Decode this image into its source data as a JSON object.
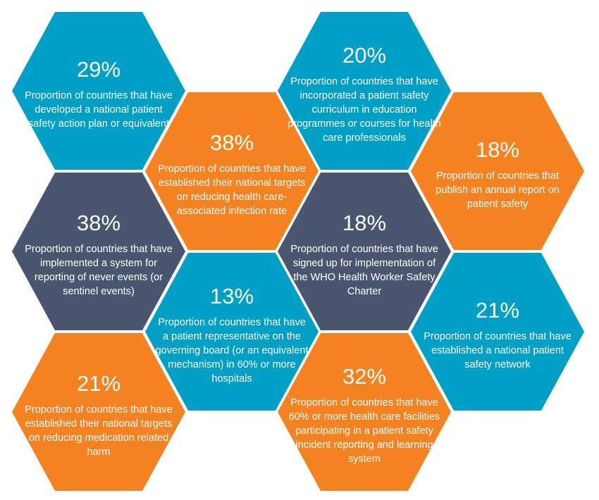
{
  "colors": {
    "blue": "#00A0C6",
    "orange": "#F58220",
    "dark": "#4A566F"
  },
  "hexagons": [
    {
      "value": "29%",
      "text": "Proportion of countries that have developed a national patient safety action plan or equivalent",
      "color": "blue",
      "col": 0,
      "row": 0
    },
    {
      "value": "38%",
      "text": "Proportion of countries that have established their national targets on reducing health care-associated infection rate",
      "color": "orange",
      "col": 1,
      "row": 1
    },
    {
      "value": "20%",
      "text": "Proportion of countries that have incorporated a patient safety curriculum in education programmes or courses for health care professionals",
      "color": "blue",
      "col": 2,
      "row": 0
    },
    {
      "value": "18%",
      "text": "Proportion of countries that publish an annual report on patient safety",
      "color": "orange",
      "col": 3,
      "row": 1
    },
    {
      "value": "38%",
      "text": "Proportion of countries that have implemented a system for reporting of never events (or sentinel events)",
      "color": "dark",
      "col": 0,
      "row": 2
    },
    {
      "value": "18%",
      "text": "Proportion of countries that have signed up for implementation of the WHO Health Worker Safety Charter",
      "color": "dark",
      "col": 2,
      "row": 2
    },
    {
      "value": "13%",
      "text": "Proportion of countries that have a patient representative on the governing board (or an equivalent mechanism) in 60% or more hospitals",
      "color": "blue",
      "col": 1,
      "row": 3
    },
    {
      "value": "21%",
      "text": "Proportion of countries that have established a national patient safety network",
      "color": "blue",
      "col": 3,
      "row": 3
    },
    {
      "value": "21%",
      "text": "Proportion of countries that have established their national targets on reducing medication related harm",
      "color": "orange",
      "col": 0,
      "row": 4
    },
    {
      "value": "32%",
      "text": "Proportion of countries that have 60% or more health care facilities participating in a patient safety incident reporting and learning system",
      "color": "orange",
      "col": 2,
      "row": 4
    }
  ]
}
